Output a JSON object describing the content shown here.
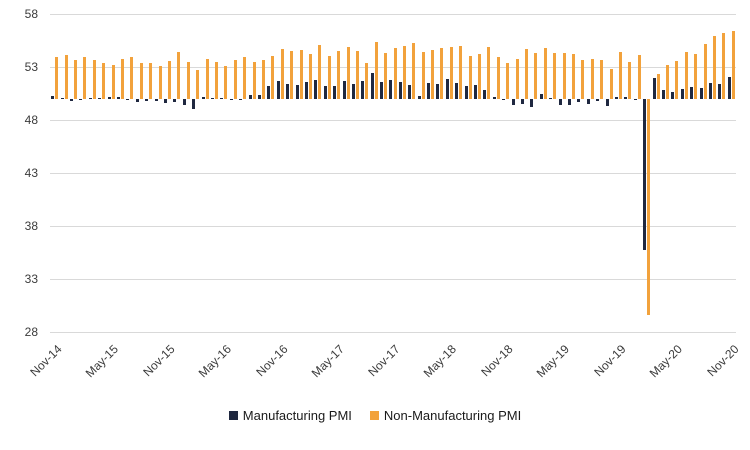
{
  "chart_data": {
    "type": "bar",
    "x": [
      "Nov-14",
      "Dec-14",
      "Jan-15",
      "Feb-15",
      "Mar-15",
      "Apr-15",
      "May-15",
      "Jun-15",
      "Jul-15",
      "Aug-15",
      "Sep-15",
      "Oct-15",
      "Nov-15",
      "Dec-15",
      "Jan-16",
      "Feb-16",
      "Mar-16",
      "Apr-16",
      "May-16",
      "Jun-16",
      "Jul-16",
      "Aug-16",
      "Sep-16",
      "Oct-16",
      "Nov-16",
      "Dec-16",
      "Jan-17",
      "Feb-17",
      "Mar-17",
      "Apr-17",
      "May-17",
      "Jun-17",
      "Jul-17",
      "Aug-17",
      "Sep-17",
      "Oct-17",
      "Nov-17",
      "Dec-17",
      "Jan-18",
      "Feb-18",
      "Mar-18",
      "Apr-18",
      "May-18",
      "Jun-18",
      "Jul-18",
      "Aug-18",
      "Sep-18",
      "Oct-18",
      "Nov-18",
      "Dec-18",
      "Jan-19",
      "Feb-19",
      "Mar-19",
      "Apr-19",
      "May-19",
      "Jun-19",
      "Jul-19",
      "Aug-19",
      "Sep-19",
      "Oct-19",
      "Nov-19",
      "Dec-19",
      "Jan-20",
      "Feb-20",
      "Mar-20",
      "Apr-20",
      "May-20",
      "Jun-20",
      "Jul-20",
      "Aug-20",
      "Sep-20",
      "Oct-20",
      "Nov-20"
    ],
    "series": [
      {
        "name": "Manufacturing PMI",
        "color": "#1F2840",
        "values": [
          50.3,
          50.1,
          49.8,
          49.9,
          50.1,
          50.1,
          50.2,
          50.2,
          50.0,
          49.7,
          49.8,
          49.8,
          49.6,
          49.7,
          49.4,
          49.0,
          50.2,
          50.1,
          50.1,
          50.0,
          49.9,
          50.4,
          50.4,
          51.2,
          51.7,
          51.4,
          51.3,
          51.6,
          51.8,
          51.2,
          51.2,
          51.7,
          51.4,
          51.7,
          52.4,
          51.6,
          51.8,
          51.6,
          51.3,
          50.3,
          51.5,
          51.4,
          51.9,
          51.5,
          51.2,
          51.3,
          50.8,
          50.2,
          50.0,
          49.4,
          49.5,
          49.2,
          50.5,
          50.1,
          49.4,
          49.4,
          49.7,
          49.5,
          49.8,
          49.3,
          50.2,
          50.2,
          50.0,
          35.7,
          52.0,
          50.8,
          50.6,
          50.9,
          51.1,
          51.0,
          51.5,
          51.4,
          52.1
        ]
      },
      {
        "name": "Non-Manufacturing PMI",
        "color": "#F2A23C",
        "values": [
          53.9,
          54.1,
          53.7,
          53.9,
          53.7,
          53.4,
          53.2,
          53.8,
          53.9,
          53.4,
          53.4,
          53.1,
          53.6,
          54.4,
          53.5,
          52.7,
          53.8,
          53.5,
          53.1,
          53.7,
          53.9,
          53.5,
          53.7,
          54.0,
          54.7,
          54.5,
          54.6,
          54.2,
          55.1,
          54.0,
          54.5,
          54.9,
          54.5,
          53.4,
          55.4,
          54.3,
          54.8,
          55.0,
          55.3,
          54.4,
          54.6,
          54.8,
          54.9,
          55.0,
          54.0,
          54.2,
          54.9,
          53.9,
          53.4,
          53.8,
          54.7,
          54.3,
          54.8,
          54.3,
          54.3,
          54.2,
          53.7,
          53.8,
          53.7,
          52.8,
          54.4,
          53.5,
          54.1,
          29.6,
          52.3,
          53.2,
          53.6,
          54.4,
          54.2,
          55.2,
          55.9,
          56.2,
          56.4
        ]
      }
    ],
    "baseline": 50,
    "ylim": [
      28,
      58
    ],
    "yticks": [
      28,
      33,
      38,
      43,
      48,
      53,
      58
    ],
    "x_tick_every": 6,
    "grid": "horizontal",
    "legend_position": "bottom",
    "colors": {
      "gridline": "#d9d9d9",
      "axis_text": "#3b3b3b",
      "background": "#ffffff"
    }
  }
}
